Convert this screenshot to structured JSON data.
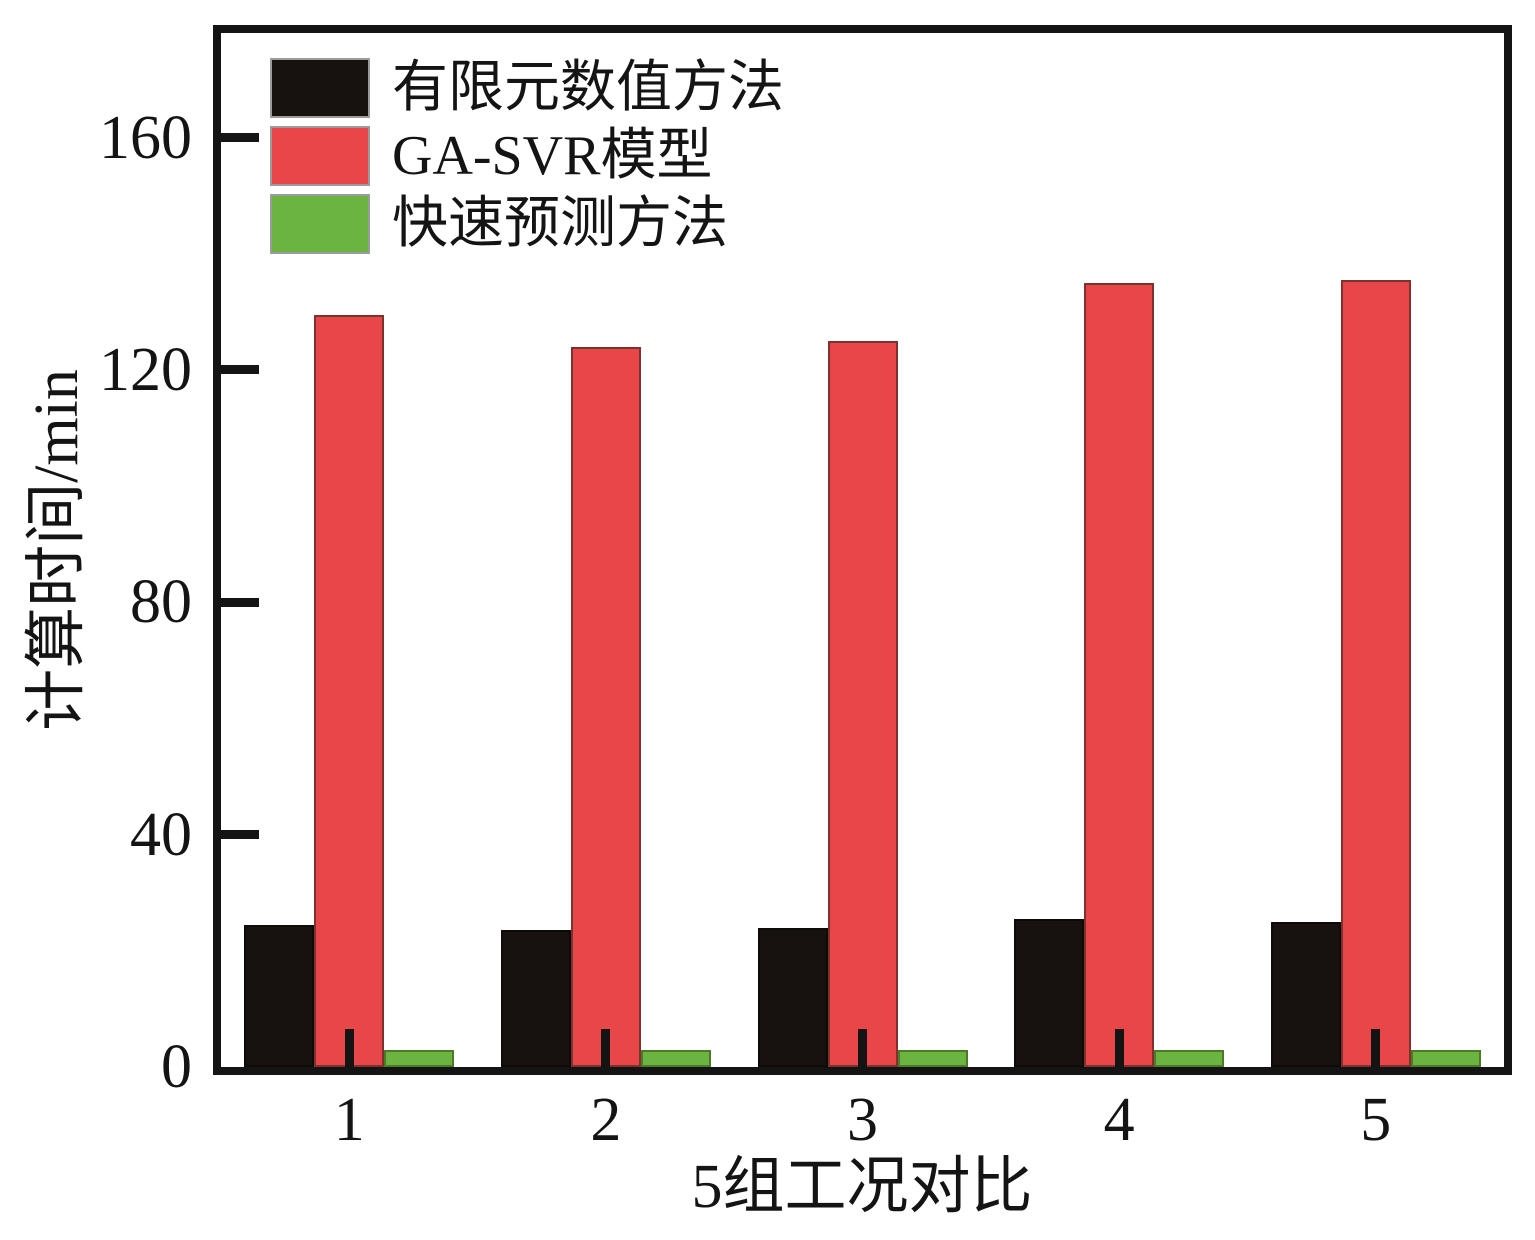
{
  "chart_data": {
    "type": "bar",
    "title": "",
    "categories": [
      "1",
      "2",
      "3",
      "4",
      "5"
    ],
    "series": [
      {
        "key": "fem",
        "name": "有限元数值方法",
        "fill": "#17120f",
        "border": "#0d0a08",
        "values": [
          24.5,
          23.5,
          24,
          25.5,
          25
        ]
      },
      {
        "key": "ga-svr",
        "name": "GA-SVR模型",
        "fill": "#e84648",
        "border": "#7e3230",
        "values": [
          129.5,
          124,
          125,
          135,
          135.5
        ]
      },
      {
        "key": "fast",
        "name": "快速预测方法",
        "fill": "#6bb441",
        "border": "#4c7a26",
        "values": [
          3,
          3,
          3,
          3,
          3
        ]
      }
    ],
    "xlabel": "5组工况对比",
    "ylabel": "计算时间/min",
    "ylim": [
      0,
      178
    ],
    "yticks": [
      0,
      40,
      80,
      120,
      160
    ],
    "legend_position": "top-left",
    "grid": false,
    "axis_color": "#141414",
    "background_color": "#ffffff"
  }
}
